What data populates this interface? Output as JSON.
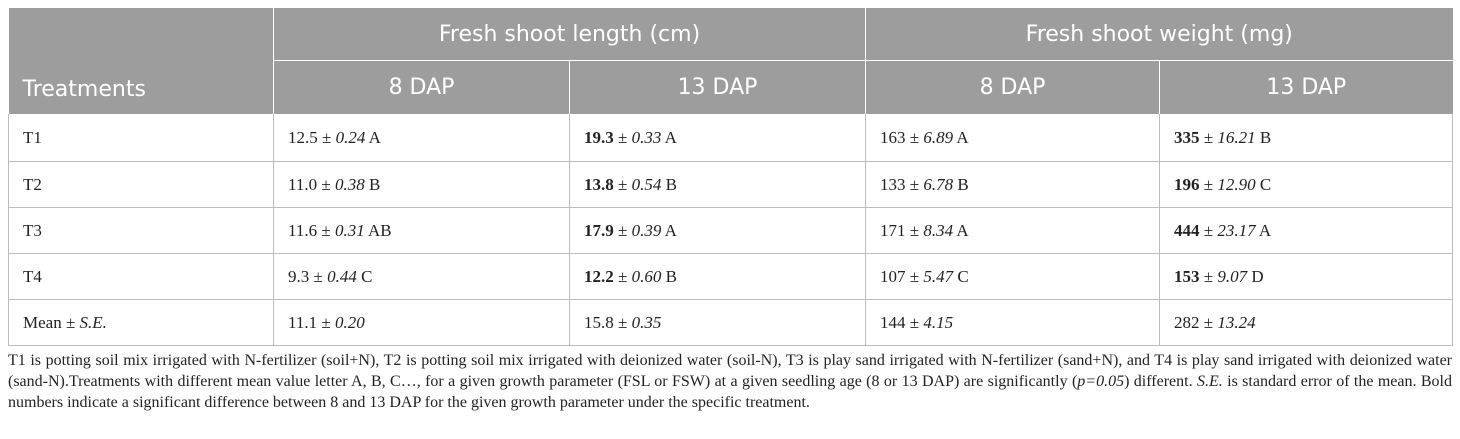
{
  "header": {
    "treatments": "Treatments",
    "groups": [
      "Fresh shoot length (cm)",
      "Fresh shoot weight (mg)"
    ],
    "subs": [
      "8 DAP",
      "13 DAP",
      "8 DAP",
      "13 DAP"
    ]
  },
  "pm": "±",
  "rows": [
    {
      "label": "T1",
      "cells": [
        {
          "v": "12.5",
          "se": "0.24",
          "g": "A",
          "bold": false
        },
        {
          "v": "19.3",
          "se": "0.33",
          "g": "A",
          "bold": true
        },
        {
          "v": "163",
          "se": "6.89",
          "g": "A",
          "bold": false
        },
        {
          "v": "335",
          "se": "16.21",
          "g": "B",
          "bold": true
        }
      ]
    },
    {
      "label": "T2",
      "cells": [
        {
          "v": "11.0",
          "se": "0.38",
          "g": "B",
          "bold": false
        },
        {
          "v": "13.8",
          "se": "0.54",
          "g": "B",
          "bold": true
        },
        {
          "v": "133",
          "se": "6.78",
          "g": "B",
          "bold": false
        },
        {
          "v": "196",
          "se": "12.90",
          "g": "C",
          "bold": true
        }
      ]
    },
    {
      "label": "T3",
      "cells": [
        {
          "v": "11.6",
          "se": "0.31",
          "g": "AB",
          "bold": false
        },
        {
          "v": "17.9",
          "se": "0.39",
          "g": "A",
          "bold": true
        },
        {
          "v": "171",
          "se": "8.34",
          "g": "A",
          "bold": false
        },
        {
          "v": "444",
          "se": "23.17",
          "g": "A",
          "bold": true
        }
      ]
    },
    {
      "label": "T4",
      "cells": [
        {
          "v": "9.3",
          "se": "0.44",
          "g": "C",
          "bold": false
        },
        {
          "v": "12.2",
          "se": "0.60",
          "g": "B",
          "bold": true
        },
        {
          "v": "107",
          "se": "5.47",
          "g": "C",
          "bold": false
        },
        {
          "v": "153",
          "se": "9.07",
          "g": "D",
          "bold": true
        }
      ]
    }
  ],
  "mean_row": {
    "label_prefix": "Mean ±",
    "label_se": "S.E.",
    "cells": [
      {
        "v": "11.1",
        "se": "0.20"
      },
      {
        "v": "15.8",
        "se": "0.35"
      },
      {
        "v": "144",
        "se": "4.15"
      },
      {
        "v": "282",
        "se": "13.24"
      }
    ]
  },
  "footnote": {
    "line1": "T1 is potting soil mix irrigated with N-fertilizer (soil+N), T2 is potting soil mix irrigated with deionized water (soil-N), T3 is play sand irrigated with N-fertilizer (sand+N), and T4 is play sand irrigated with deionized water (sand-N).Treatments with different mean value letter A, B, C…, for a given growth parameter (FSL or FSW) at a given seedling age (8 or 13 DAP) are significantly (",
    "p_value": "p=0.05",
    "line2": ") different. ",
    "se_abbr": "S.E.",
    "line3": " is standard error of the mean. Bold numbers indicate a significant difference between 8 and 13 DAP for the given growth parameter under the specific treatment."
  }
}
